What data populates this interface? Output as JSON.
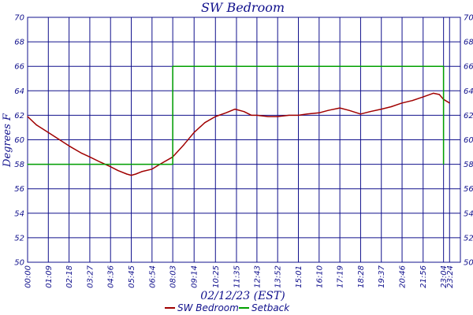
{
  "chart_data": {
    "type": "line",
    "title": "SW Bedroom",
    "xlabel": "02/12/23 (EST)",
    "ylabel": "Degrees F",
    "ylim": [
      50,
      70
    ],
    "yticks": [
      "50",
      "52",
      "54",
      "56",
      "58",
      "60",
      "62",
      "64",
      "66",
      "68",
      "70"
    ],
    "xlim": [
      0,
      1440
    ],
    "xticks": [
      {
        "m": 0,
        "label": "00:00"
      },
      {
        "m": 69,
        "label": "01:09"
      },
      {
        "m": 138,
        "label": "02:18"
      },
      {
        "m": 207,
        "label": "03:27"
      },
      {
        "m": 276,
        "label": "04:36"
      },
      {
        "m": 345,
        "label": "05:45"
      },
      {
        "m": 414,
        "label": "06:54"
      },
      {
        "m": 483,
        "label": "08:03"
      },
      {
        "m": 554,
        "label": "09:14"
      },
      {
        "m": 625,
        "label": "10:25"
      },
      {
        "m": 695,
        "label": "11:35"
      },
      {
        "m": 763,
        "label": "12:43"
      },
      {
        "m": 832,
        "label": "13:52"
      },
      {
        "m": 901,
        "label": "15:01"
      },
      {
        "m": 970,
        "label": "16:10"
      },
      {
        "m": 1039,
        "label": "17:19"
      },
      {
        "m": 1108,
        "label": "18:28"
      },
      {
        "m": 1177,
        "label": "19:37"
      },
      {
        "m": 1246,
        "label": "20:46"
      },
      {
        "m": 1316,
        "label": "21:56"
      },
      {
        "m": 1384,
        "label": "23:04"
      },
      {
        "m": 1404,
        "label": "23:24"
      }
    ],
    "grid": true,
    "legend_position": "bottom",
    "series": [
      {
        "name": "SW Bedroom",
        "color": "#a00000",
        "points": [
          [
            0,
            61.9
          ],
          [
            30,
            61.2
          ],
          [
            69,
            60.6
          ],
          [
            100,
            60.1
          ],
          [
            138,
            59.5
          ],
          [
            180,
            58.9
          ],
          [
            207,
            58.6
          ],
          [
            240,
            58.2
          ],
          [
            276,
            57.8
          ],
          [
            300,
            57.5
          ],
          [
            330,
            57.2
          ],
          [
            345,
            57.1
          ],
          [
            360,
            57.2
          ],
          [
            380,
            57.4
          ],
          [
            414,
            57.6
          ],
          [
            440,
            58.0
          ],
          [
            483,
            58.6
          ],
          [
            520,
            59.6
          ],
          [
            554,
            60.6
          ],
          [
            590,
            61.4
          ],
          [
            625,
            61.9
          ],
          [
            660,
            62.2
          ],
          [
            690,
            62.5
          ],
          [
            720,
            62.3
          ],
          [
            745,
            62.0
          ],
          [
            763,
            62.0
          ],
          [
            800,
            61.9
          ],
          [
            832,
            61.9
          ],
          [
            870,
            62.0
          ],
          [
            901,
            62.0
          ],
          [
            930,
            62.1
          ],
          [
            970,
            62.2
          ],
          [
            1000,
            62.4
          ],
          [
            1039,
            62.6
          ],
          [
            1070,
            62.4
          ],
          [
            1108,
            62.1
          ],
          [
            1140,
            62.3
          ],
          [
            1177,
            62.5
          ],
          [
            1210,
            62.7
          ],
          [
            1246,
            63.0
          ],
          [
            1280,
            63.2
          ],
          [
            1316,
            63.5
          ],
          [
            1350,
            63.8
          ],
          [
            1370,
            63.7
          ],
          [
            1384,
            63.3
          ],
          [
            1404,
            63.0
          ]
        ]
      },
      {
        "name": "Setback",
        "color": "#00a000",
        "points": [
          [
            0,
            58
          ],
          [
            483,
            58
          ],
          [
            483,
            66
          ],
          [
            1384,
            66
          ],
          [
            1384,
            58
          ]
        ]
      }
    ]
  }
}
